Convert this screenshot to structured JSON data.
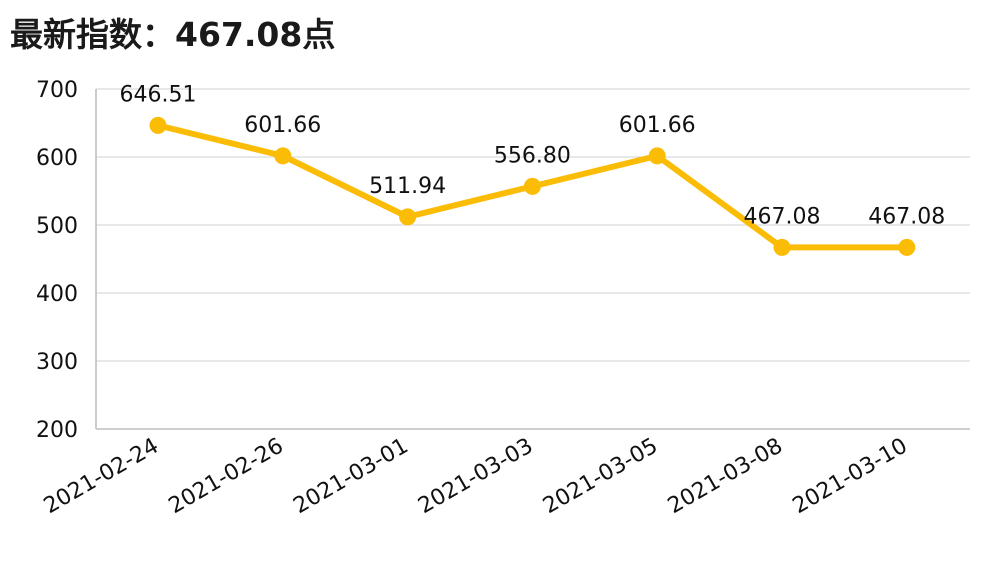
{
  "header": {
    "title": "最新指数：467.08点"
  },
  "chart_data": {
    "type": "line",
    "title": "最新指数：467.08点",
    "xlabel": "",
    "ylabel": "",
    "categories": [
      "2021-02-24",
      "2021-02-26",
      "2021-03-01",
      "2021-03-03",
      "2021-03-05",
      "2021-03-08",
      "2021-03-10"
    ],
    "series": [
      {
        "values": [
          646.51,
          601.66,
          511.94,
          556.8,
          601.66,
          467.08,
          467.08
        ],
        "labels": [
          "646.51",
          "601.66",
          "511.94",
          "556.80",
          "601.66",
          "467.08",
          "467.08"
        ]
      }
    ],
    "ylim": [
      200,
      700
    ],
    "yticks": [
      200,
      300,
      400,
      500,
      600,
      700
    ],
    "grid": true,
    "legend": "none",
    "colors": {
      "line": "#FBBC05",
      "grid": "#d9d9d9",
      "axis": "#bfbfbf"
    }
  }
}
